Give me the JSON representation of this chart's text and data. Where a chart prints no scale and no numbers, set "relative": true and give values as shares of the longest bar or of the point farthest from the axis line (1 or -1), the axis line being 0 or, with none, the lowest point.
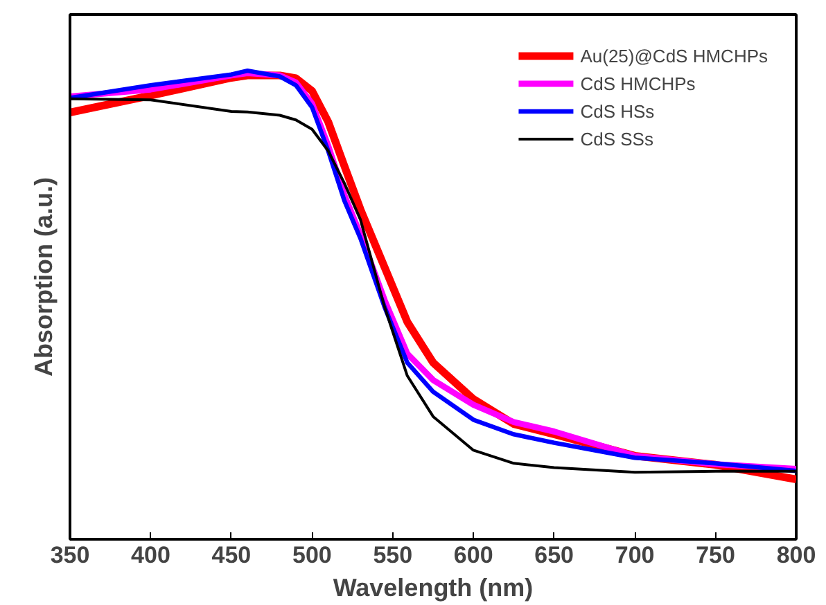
{
  "chart_data": {
    "type": "line",
    "xlabel": "Wavelength (nm)",
    "ylabel": "Absorption (a.u.)",
    "relative": true,
    "xlim": [
      350,
      800
    ],
    "xticks": [
      350,
      400,
      450,
      500,
      550,
      600,
      650,
      700,
      750,
      800
    ],
    "tick_labels": "x",
    "legend": "top right",
    "grid": false,
    "x": [
      350,
      400,
      450,
      460,
      480,
      490,
      500,
      510,
      520,
      530,
      545,
      559,
      575,
      600,
      625,
      650,
      700,
      750,
      800
    ],
    "series": [
      {
        "name": "Au(25)@CdS HMCHPs",
        "color": "#ff0000",
        "values": [
          0.911,
          0.947,
          0.985,
          0.99,
          0.99,
          0.984,
          0.957,
          0.891,
          0.797,
          0.704,
          0.58,
          0.464,
          0.377,
          0.299,
          0.246,
          0.224,
          0.178,
          0.159,
          0.128
        ]
      },
      {
        "name": "CdS HMCHPs",
        "color": "#ff00ff",
        "values": [
          0.945,
          0.96,
          0.99,
          0.995,
          0.99,
          0.975,
          0.93,
          0.84,
          0.735,
          0.65,
          0.51,
          0.396,
          0.34,
          0.287,
          0.25,
          0.23,
          0.178,
          0.16,
          0.15
        ]
      },
      {
        "name": "CdS HSs",
        "color": "#0000ff",
        "values": [
          0.942,
          0.969,
          0.992,
          1.0,
          0.988,
          0.969,
          0.922,
          0.829,
          0.723,
          0.642,
          0.495,
          0.377,
          0.315,
          0.255,
          0.224,
          0.206,
          0.174,
          0.162,
          0.146
        ]
      },
      {
        "name": "CdS SSs",
        "color": "#000000",
        "values": [
          0.94,
          0.938,
          0.913,
          0.912,
          0.905,
          0.895,
          0.875,
          0.829,
          0.76,
          0.682,
          0.495,
          0.349,
          0.262,
          0.19,
          0.162,
          0.153,
          0.143,
          0.145,
          0.145
        ]
      }
    ]
  }
}
